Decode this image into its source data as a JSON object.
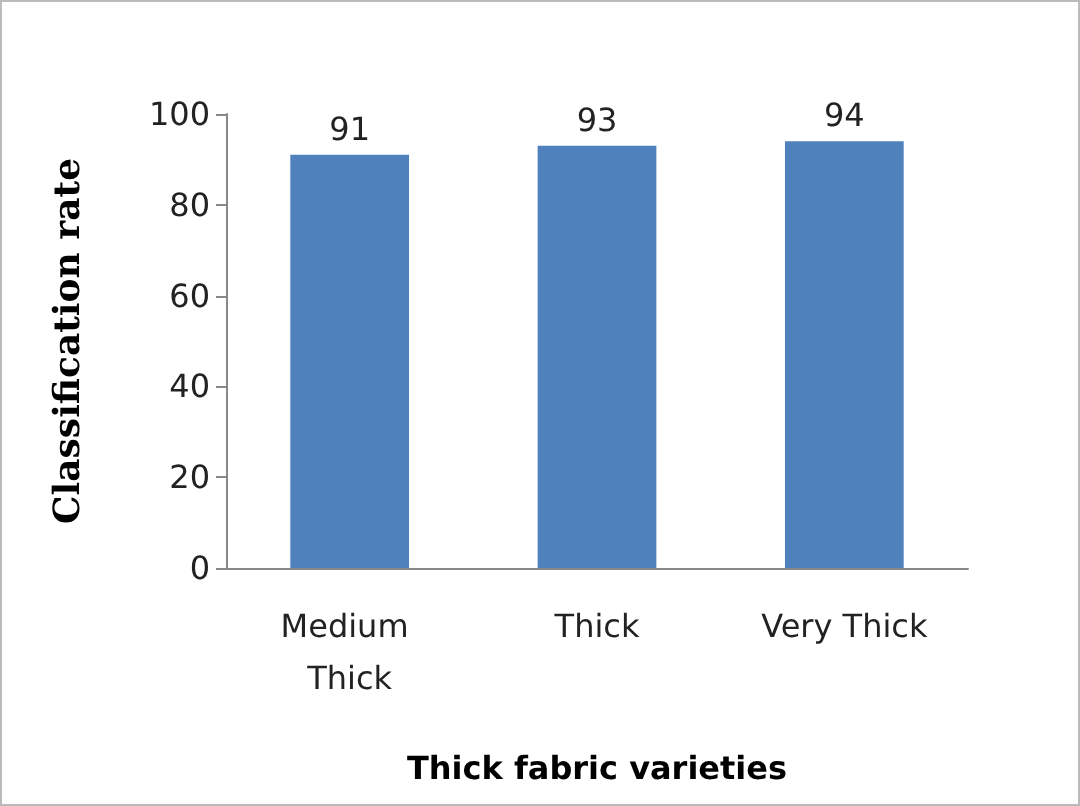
{
  "chart_data": {
    "type": "bar",
    "xlabel": "Thick fabric varieties",
    "ylabel": "Classification rate",
    "categories": [
      "Medium Thick",
      "Thick",
      "Very Thick"
    ],
    "values": [
      91,
      93,
      94
    ],
    "color": "#4f81bd",
    "ylim": [
      0,
      100
    ],
    "yticks": [
      0,
      20,
      40,
      60,
      80,
      100
    ],
    "grid": false,
    "data_labels": true
  }
}
